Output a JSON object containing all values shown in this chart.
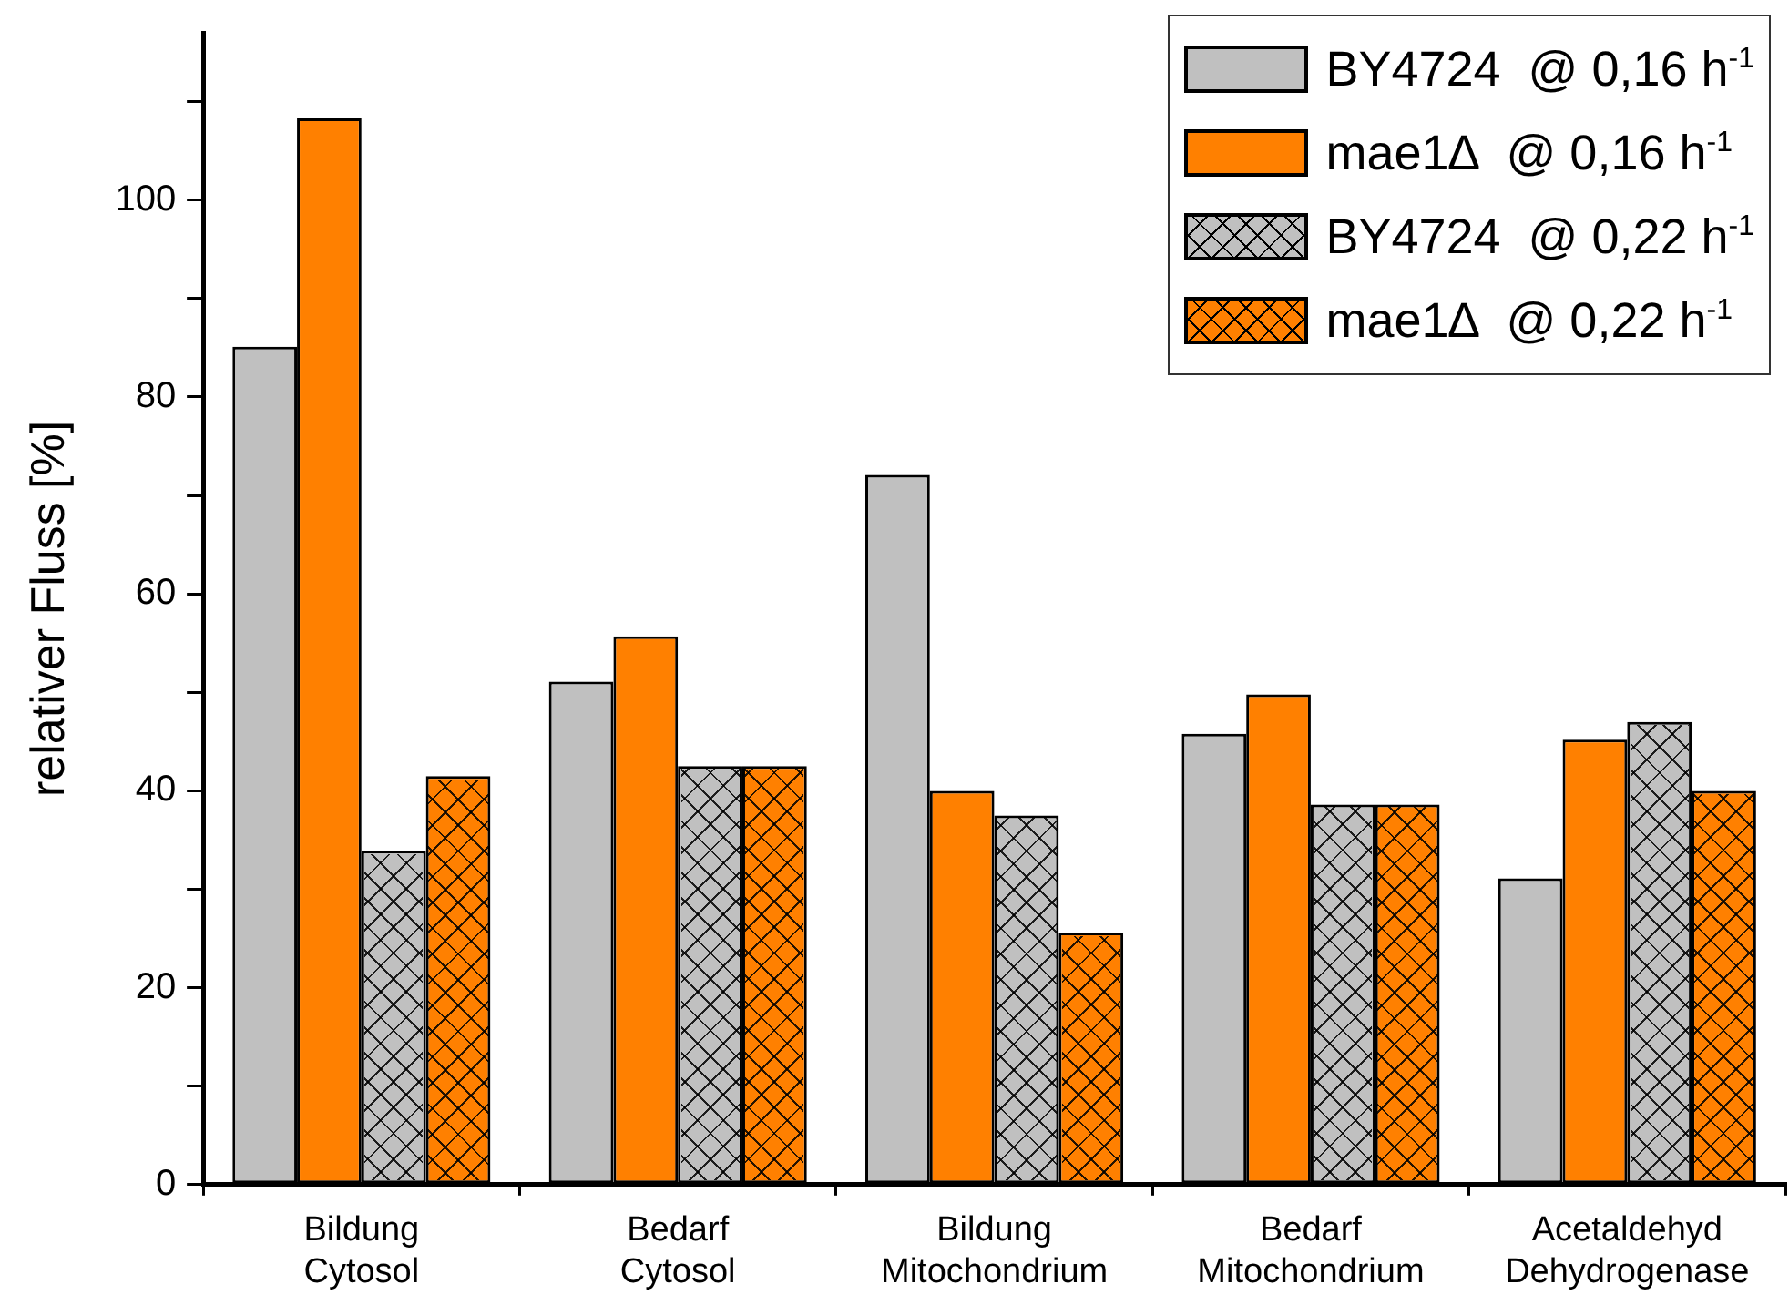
{
  "chart_data": {
    "type": "bar",
    "ylabel": "relativer Fluss [%]",
    "categories": [
      "Bildung Cytosol",
      "Bedarf Cytosol",
      "Bildung Mitochondrium",
      "Bedarf Mitochondrium",
      "Acetaldehyd Dehydrogenase"
    ],
    "series": [
      {
        "name": "BY4724  @ 0,16 h$^{-1}$",
        "color": "#c0c0c0",
        "values": [
          85.1,
          51.1,
          72.1,
          45.8,
          31.1
        ]
      },
      {
        "name": "mae1∆  @ 0,16 h$^{-1}$",
        "color": "#ff8000",
        "values": [
          108.3,
          55.7,
          40.0,
          49.8,
          45.2
        ]
      },
      {
        "name": "BY4724  @ 0,22 h$^{-1}$",
        "color": "#c0c0c0",
        "values": [
          33.9,
          42.5,
          37.5,
          38.6,
          47.0
        ]
      },
      {
        "name": "mae1∆  @ 0,22 h$^{-1}$",
        "color": "#ff8000",
        "values": [
          41.5,
          42.5,
          25.6,
          38.6,
          40.0
        ]
      }
    ],
    "ylim": [
      0,
      117
    ],
    "yticks": [
      0,
      {
        "value": 10,
        "label": null
      },
      20,
      {
        "value": 30,
        "label": null
      },
      40,
      {
        "value": 50,
        "label": null
      },
      60,
      {
        "value": 70,
        "label": null
      },
      80,
      {
        "value": 90,
        "label": null
      },
      100,
      {
        "value": 110,
        "label": null
      }
    ],
    "grid": false,
    "legend": "top right"
  }
}
